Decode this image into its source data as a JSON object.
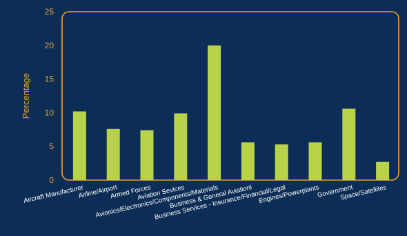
{
  "chart_data": {
    "type": "bar",
    "title": "",
    "xlabel": "",
    "ylabel": "Percentage",
    "ylim": [
      0,
      25
    ],
    "yticks": [
      0,
      5,
      10,
      15,
      20,
      25
    ],
    "grid": false,
    "categories": [
      "Aircraft Manufacturer",
      "Airline/Airport",
      "Armed Forces",
      "Aviation Sevices",
      "Avionics/Electronics/Components/Materials",
      "Business & General Aviationl",
      "Business Services - Insurance/Financial/Legal",
      "Engines/Powerplants",
      "Government",
      "Space/Satellites"
    ],
    "values": [
      10.2,
      7.6,
      7.4,
      9.9,
      20.0,
      5.6,
      5.3,
      5.6,
      10.6,
      2.7
    ]
  },
  "colors": {
    "background": "#0c2d55",
    "bar": "#b8d24a",
    "frame": "#f0a030",
    "axis_text": "#f0a030",
    "category_text": "#ffffff"
  }
}
